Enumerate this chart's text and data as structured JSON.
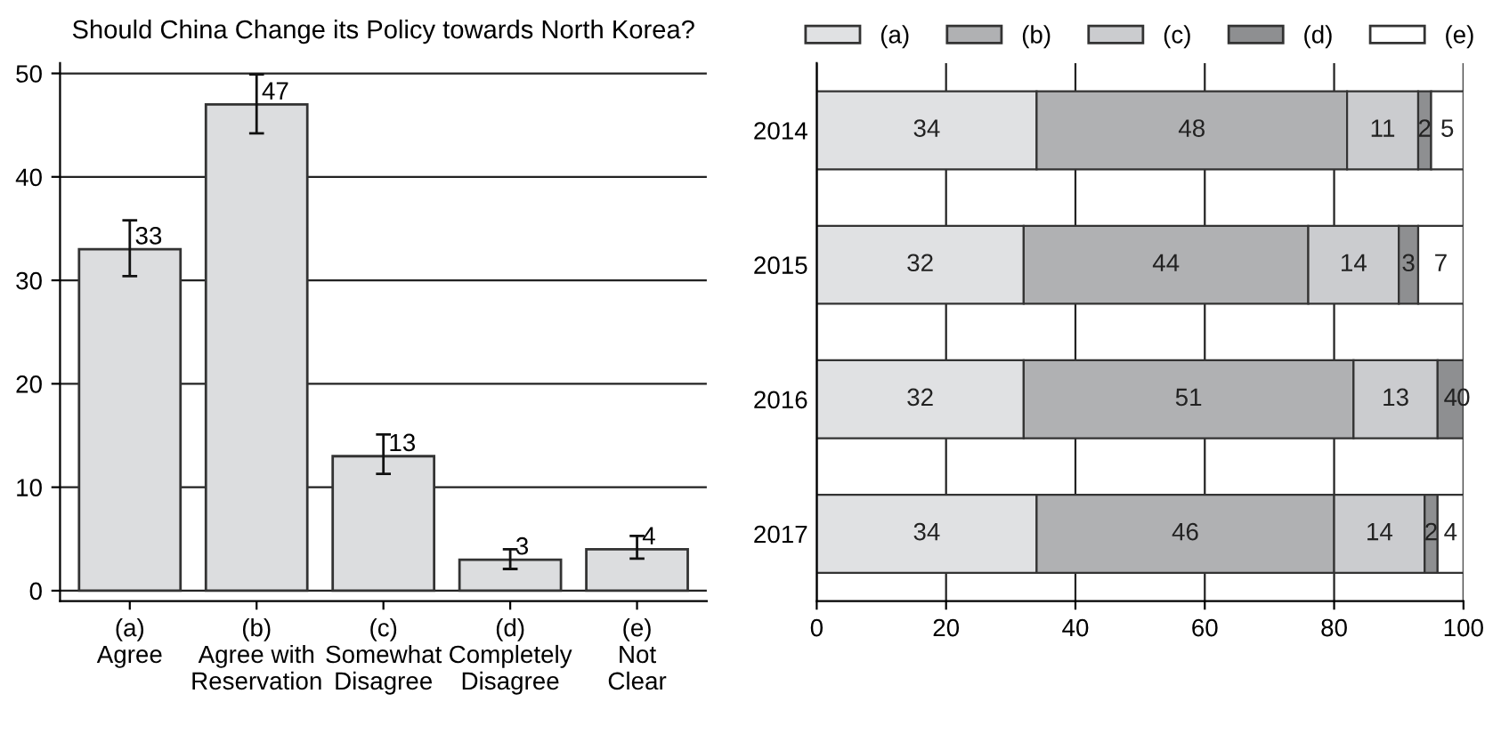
{
  "chart_data": [
    {
      "type": "bar",
      "title": "Should China Change its Policy towards North Korea?",
      "categories": [
        "(a)\nAgree",
        "(b)\nAgree with\nReservation",
        "(c)\nSomewhat\nDisagree",
        "(d)\nCompletely\nDisagree",
        "(e)\nNot\nClear"
      ],
      "values": [
        33,
        47,
        13,
        3,
        4
      ],
      "color": "#dcdddf",
      "errors": [
        [
          30.4,
          35.8
        ],
        [
          44.2,
          49.9
        ],
        [
          11.3,
          15.1
        ],
        [
          2.1,
          4.0
        ],
        [
          3.1,
          5.3
        ]
      ],
      "ylim": [
        -1,
        51
      ],
      "yticks": [
        0,
        10,
        20,
        30,
        40,
        50
      ],
      "grid": "y",
      "data_labels": true
    },
    {
      "type": "bar",
      "orientation": "horizontal",
      "stacked": true,
      "categories": [
        "2014",
        "2015",
        "2016",
        "2017"
      ],
      "series": [
        {
          "name": "(a)",
          "color": "#e0e1e3",
          "values": [
            34,
            32,
            32,
            34
          ]
        },
        {
          "name": "(b)",
          "color": "#b0b1b3",
          "values": [
            48,
            44,
            51,
            46
          ]
        },
        {
          "name": "(c)",
          "color": "#cbcccf",
          "values": [
            11,
            14,
            13,
            14
          ]
        },
        {
          "name": "(d)",
          "color": "#8e8f91",
          "values": [
            2,
            3,
            4,
            2
          ]
        },
        {
          "name": "(e)",
          "color": "#ffffff",
          "values": [
            5,
            7,
            0,
            4
          ]
        }
      ],
      "xlim": [
        0,
        100
      ],
      "xticks": [
        0,
        20,
        40,
        60,
        80,
        100
      ],
      "grid": "x",
      "legend": "top",
      "data_labels": true
    }
  ]
}
